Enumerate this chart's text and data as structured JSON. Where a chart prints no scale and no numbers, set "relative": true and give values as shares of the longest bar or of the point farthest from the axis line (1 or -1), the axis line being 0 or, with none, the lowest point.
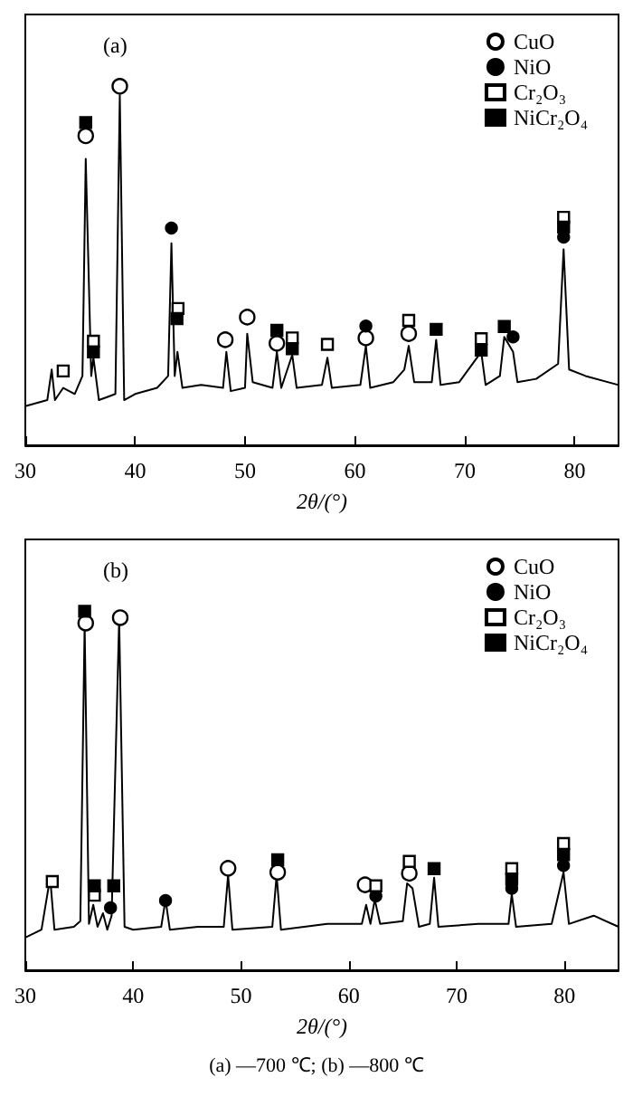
{
  "chart_data": [
    {
      "type": "line",
      "title": "(a)",
      "xlabel": "2θ/(°)",
      "xlim": [
        30,
        84
      ],
      "xticks": [
        30,
        40,
        50,
        60,
        70,
        80
      ],
      "relative": true,
      "tick_labels": "x",
      "legend": "top right",
      "grid": false,
      "marker": "none",
      "line_style": "solid",
      "series": [
        {
          "color": "#000000",
          "x": [
            30,
            32,
            32.4,
            32.7,
            33.45,
            34.5,
            35.2,
            35.5,
            36.0,
            36.2,
            36.7,
            37.5,
            38.2,
            38.6,
            39.0,
            40,
            42,
            43.0,
            43.3,
            43.6,
            43.85,
            44.3,
            46,
            48,
            48.3,
            48.7,
            50,
            50.2,
            50.7,
            52.5,
            52.9,
            53.3,
            54.3,
            54.7,
            57,
            57.5,
            57.9,
            60.5,
            61.0,
            61.4,
            63.5,
            64.5,
            64.9,
            65.4,
            67,
            67.4,
            67.8,
            69.5,
            71.5,
            71.9,
            73.2,
            73.6,
            74.4,
            74.8,
            76.5,
            78.5,
            79.0,
            79.5,
            81,
            84
          ],
          "values": [
            0.109,
            0.126,
            0.211,
            0.126,
            0.16,
            0.143,
            0.193,
            0.798,
            0.193,
            0.244,
            0.126,
            0.135,
            0.143,
            0.975,
            0.126,
            0.143,
            0.16,
            0.193,
            0.563,
            0.193,
            0.26,
            0.16,
            0.168,
            0.16,
            0.26,
            0.151,
            0.16,
            0.311,
            0.176,
            0.16,
            0.26,
            0.16,
            0.252,
            0.16,
            0.168,
            0.244,
            0.16,
            0.168,
            0.277,
            0.16,
            0.176,
            0.211,
            0.277,
            0.176,
            0.176,
            0.294,
            0.168,
            0.176,
            0.26,
            0.168,
            0.193,
            0.302,
            0.26,
            0.176,
            0.185,
            0.227,
            0.546,
            0.211,
            0.193,
            0.168
          ]
        },
        {
          "type": "scatter",
          "name": "CuO",
          "marker": "circle",
          "color": "#ffffff",
          "x": [
            35.5,
            38.6,
            48.2,
            50.2,
            52.9,
            61.0,
            64.9
          ],
          "values": [
            0.862,
            1,
            0.294,
            0.357,
            0.284,
            0.299,
            0.311
          ]
        },
        {
          "type": "scatter",
          "name": "NiO",
          "marker": "circle",
          "color": "#000000",
          "x": [
            43.3,
            61.0,
            74.4,
            79.0
          ],
          "values": [
            0.605,
            0.332,
            0.302,
            0.58
          ]
        },
        {
          "type": "scatter",
          "name": "Cr₂O₃",
          "marker": "square",
          "color": "#ffffff",
          "x": [
            33.45,
            36.2,
            43.9,
            54.3,
            57.5,
            64.9,
            71.5,
            79.0
          ],
          "values": [
            0.207,
            0.29,
            0.381,
            0.299,
            0.281,
            0.348,
            0.297,
            0.635
          ]
        },
        {
          "type": "scatter",
          "name": "NiCr₂O₄",
          "marker": "square",
          "color": "#000000",
          "x": [
            35.5,
            36.2,
            43.8,
            52.9,
            54.3,
            67.4,
            71.5,
            73.6,
            79.0
          ],
          "values": [
            0.899,
            0.26,
            0.353,
            0.32,
            0.269,
            0.323,
            0.265,
            0.331,
            0.608
          ]
        }
      ]
    },
    {
      "type": "line",
      "title": "(b)",
      "xlabel": "2θ/(°)",
      "xlim": [
        30,
        85
      ],
      "xticks": [
        30,
        40,
        50,
        60,
        70,
        80
      ],
      "relative": true,
      "tick_labels": "x",
      "legend": "top right",
      "grid": false,
      "marker": "none",
      "line_style": "solid",
      "annotations": [
        "(a) —700 ℃; (b) —800 ℃"
      ],
      "series": [
        {
          "color": "#000000",
          "x": [
            30,
            31.5,
            32.3,
            32.7,
            34.5,
            35.1,
            35.5,
            35.9,
            36.3,
            36.7,
            37.2,
            37.6,
            38.0,
            38.7,
            39.2,
            40,
            42.6,
            43.0,
            43.4,
            46,
            48.4,
            48.8,
            49.2,
            52.9,
            53.3,
            53.7,
            58,
            61.2,
            61.6,
            62.0,
            62.4,
            62.9,
            65.0,
            65.4,
            65.9,
            66.5,
            67.5,
            67.9,
            68.3,
            72,
            74.8,
            75.1,
            75.5,
            78.8,
            79.9,
            80.4,
            82.7,
            85
          ],
          "values": [
            0.091,
            0.113,
            0.258,
            0.113,
            0.121,
            0.137,
            0.962,
            0.129,
            0.182,
            0.121,
            0.159,
            0.113,
            0.152,
            0.978,
            0.121,
            0.113,
            0.121,
            0.197,
            0.113,
            0.121,
            0.121,
            0.265,
            0.113,
            0.121,
            0.265,
            0.113,
            0.129,
            0.129,
            0.182,
            0.129,
            0.197,
            0.129,
            0.137,
            0.242,
            0.228,
            0.121,
            0.129,
            0.258,
            0.121,
            0.129,
            0.129,
            0.212,
            0.121,
            0.129,
            0.273,
            0.129,
            0.152,
            0.121
          ]
        },
        {
          "type": "scatter",
          "name": "CuO",
          "marker": "circle",
          "color": "#ffffff",
          "x": [
            35.6,
            38.8,
            48.8,
            53.4,
            61.5,
            65.6
          ],
          "values": [
            0.967,
            0.982,
            0.284,
            0.273,
            0.238,
            0.27
          ]
        },
        {
          "type": "scatter",
          "name": "NiO",
          "marker": "circle",
          "color": "#000000",
          "x": [
            37.9,
            43.0,
            62.5,
            75.1,
            79.9
          ],
          "values": [
            0.174,
            0.194,
            0.207,
            0.228,
            0.292
          ]
        },
        {
          "type": "scatter",
          "name": "Cr₂O₃",
          "marker": "square",
          "color": "#ffffff",
          "x": [
            32.5,
            36.4,
            62.5,
            65.6,
            75.1,
            79.9
          ],
          "values": [
            0.247,
            0.209,
            0.235,
            0.303,
            0.283,
            0.353
          ]
        },
        {
          "type": "scatter",
          "name": "NiCr₂O₄",
          "marker": "square",
          "color": "#000000",
          "x": [
            35.5,
            36.4,
            38.2,
            53.4,
            67.9,
            75.1,
            79.9
          ],
          "values": [
            1,
            0.235,
            0.235,
            0.308,
            0.283,
            0.254,
            0.322
          ]
        }
      ]
    }
  ]
}
